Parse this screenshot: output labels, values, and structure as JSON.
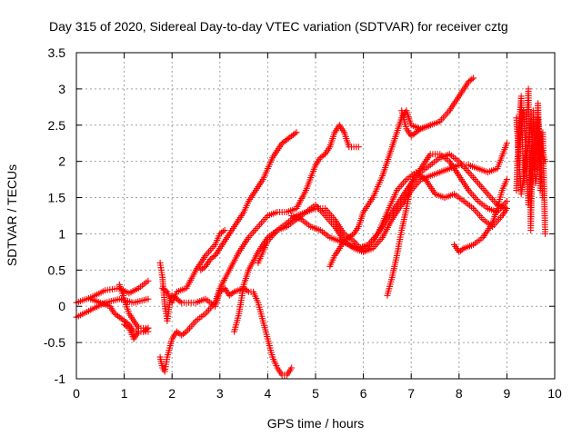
{
  "chart_data": {
    "type": "scatter",
    "title": "Day 315 of 2020, Sidereal Day-to-day VTEC variation (SDTVAR) for receiver cztg",
    "xlabel": "GPS time / hours",
    "ylabel": "SDTVAR / TECUs",
    "xlim": [
      0,
      10
    ],
    "ylim": [
      -1,
      3.5
    ],
    "xticks": [
      "0",
      "1",
      "2",
      "3",
      "4",
      "5",
      "6",
      "7",
      "8",
      "9",
      "10"
    ],
    "yticks": [
      "-1",
      "-0.5",
      "0",
      "0.5",
      "1",
      "1.5",
      "2",
      "2.5",
      "3",
      "3.5"
    ],
    "grid": true,
    "marker": "plus",
    "series_color": "#ff0000",
    "series": [
      {
        "x": [
          0.0,
          0.3,
          0.6,
          0.9,
          1.1,
          1.3,
          1.5
        ],
        "y": [
          0.05,
          0.12,
          0.22,
          0.25,
          0.18,
          0.25,
          0.35
        ]
      },
      {
        "x": [
          0.0,
          0.3,
          0.6,
          0.9,
          1.2,
          1.5
        ],
        "y": [
          -0.15,
          -0.05,
          0.05,
          0.1,
          0.05,
          0.1
        ]
      },
      {
        "x": [
          0.3,
          0.5,
          0.7,
          0.8,
          0.9,
          1.0,
          1.1,
          1.2,
          1.4,
          1.5
        ],
        "y": [
          0.1,
          0.05,
          0.0,
          -0.1,
          -0.15,
          -0.2,
          -0.25,
          -0.35,
          -0.35,
          -0.3
        ]
      },
      {
        "x": [
          1.0,
          1.1,
          1.2,
          1.3,
          1.5
        ],
        "y": [
          -0.25,
          -0.3,
          -0.45,
          -0.35,
          -0.35
        ]
      },
      {
        "x": [
          0.9,
          1.1,
          1.3,
          1.5
        ],
        "y": [
          0.3,
          -0.1,
          -0.3,
          -0.3
        ]
      },
      {
        "x": [
          1.75,
          1.8,
          1.85,
          1.9,
          1.95,
          2.0,
          2.1,
          2.2,
          2.3,
          2.5,
          2.7,
          2.9,
          3.0,
          3.1,
          3.2,
          3.3,
          3.5,
          3.6,
          3.7,
          3.8,
          3.9,
          4.0,
          4.1,
          4.2,
          4.3,
          4.4,
          4.5
        ],
        "y": [
          0.6,
          0.4,
          0.0,
          -0.2,
          0.05,
          0.15,
          0.1,
          0.05,
          0.05,
          0.05,
          0.1,
          0.0,
          0.2,
          0.25,
          0.15,
          0.2,
          0.25,
          0.2,
          0.2,
          0.05,
          -0.2,
          -0.45,
          -0.7,
          -0.85,
          -0.95,
          -0.95,
          -0.85
        ]
      },
      {
        "x": [
          1.75,
          1.8,
          1.85,
          1.9,
          2.0,
          2.1,
          2.2,
          2.3,
          2.5,
          2.7,
          2.9,
          3.0,
          3.2,
          3.4,
          3.6,
          3.8,
          4.0,
          4.2,
          4.4,
          4.6,
          4.8,
          5.0,
          5.1,
          5.2,
          5.3,
          5.4,
          5.5,
          5.6,
          5.7,
          5.8,
          5.9
        ],
        "y": [
          -0.7,
          -0.85,
          -0.9,
          -0.7,
          -0.45,
          -0.35,
          -0.4,
          -0.35,
          -0.2,
          -0.1,
          0.05,
          0.25,
          0.5,
          0.75,
          0.95,
          1.1,
          1.25,
          1.3,
          1.3,
          1.35,
          1.6,
          1.95,
          2.05,
          2.1,
          2.2,
          2.4,
          2.5,
          2.4,
          2.2,
          2.2,
          2.2
        ]
      },
      {
        "x": [
          1.8,
          1.9,
          2.0,
          2.1,
          2.3,
          2.5,
          2.7,
          2.9,
          3.0,
          3.1
        ],
        "y": [
          0.25,
          0.2,
          0.05,
          0.2,
          0.25,
          0.5,
          0.7,
          0.85,
          1.0,
          1.05
        ]
      },
      {
        "x": [
          2.6,
          2.7,
          2.8,
          2.9,
          3.0,
          3.1,
          3.2,
          3.3,
          3.4,
          3.5,
          3.6,
          3.7,
          3.8,
          3.9,
          4.0,
          4.1,
          4.2,
          4.3,
          4.4,
          4.5,
          4.6
        ],
        "y": [
          0.5,
          0.55,
          0.65,
          0.7,
          0.8,
          0.9,
          1.0,
          1.1,
          1.2,
          1.3,
          1.45,
          1.55,
          1.65,
          1.75,
          1.9,
          2.05,
          2.15,
          2.25,
          2.3,
          2.35,
          2.4
        ]
      },
      {
        "x": [
          3.3,
          3.4,
          3.5,
          3.6,
          3.8,
          4.0,
          4.2,
          4.4,
          4.6,
          4.8,
          5.0,
          5.2,
          5.4,
          5.6,
          5.8,
          6.0,
          6.2,
          6.4,
          6.6,
          6.8,
          7.0,
          7.2,
          7.4,
          7.6,
          7.8,
          8.0,
          8.2,
          8.4,
          8.6,
          8.8,
          9.0
        ],
        "y": [
          -0.35,
          -0.1,
          0.3,
          0.5,
          0.75,
          0.95,
          1.05,
          1.1,
          1.2,
          1.3,
          1.4,
          1.25,
          1.1,
          0.9,
          0.8,
          0.75,
          0.9,
          1.1,
          1.3,
          1.5,
          1.7,
          1.85,
          1.95,
          2.05,
          2.1,
          2.0,
          1.85,
          1.7,
          1.55,
          1.4,
          1.35
        ]
      },
      {
        "x": [
          3.8,
          4.0,
          4.2,
          4.4,
          4.6,
          4.8,
          5.0,
          5.2,
          5.4,
          5.6,
          5.8,
          6.0,
          6.2,
          6.4,
          6.6,
          6.8,
          7.0,
          7.2,
          7.4,
          7.6,
          7.8,
          8.0,
          8.2,
          8.4,
          8.6,
          8.8,
          9.0
        ],
        "y": [
          0.6,
          0.9,
          1.05,
          1.15,
          1.25,
          1.3,
          1.35,
          1.35,
          1.2,
          1.0,
          0.9,
          0.75,
          0.8,
          0.95,
          1.2,
          1.4,
          1.6,
          1.75,
          1.8,
          1.85,
          1.9,
          1.95,
          1.95,
          1.9,
          1.85,
          1.9,
          2.25
        ]
      },
      {
        "x": [
          4.5,
          4.7,
          4.9,
          5.1,
          5.3,
          5.5,
          5.7,
          5.9,
          6.1,
          6.3,
          6.5,
          6.7,
          6.9,
          7.1,
          7.3,
          7.5,
          7.7,
          7.9,
          8.1,
          8.3,
          8.5,
          8.7,
          8.9,
          9.0
        ],
        "y": [
          1.25,
          1.2,
          1.1,
          1.05,
          0.95,
          0.9,
          0.85,
          0.8,
          0.85,
          1.0,
          1.3,
          1.6,
          1.75,
          1.85,
          1.75,
          1.55,
          1.5,
          1.55,
          1.45,
          1.35,
          1.2,
          1.1,
          1.25,
          1.35
        ]
      },
      {
        "x": [
          5.3,
          5.4,
          5.5,
          5.6,
          5.7,
          5.8,
          5.9,
          6.0,
          6.1,
          6.2,
          6.3,
          6.4,
          6.5,
          6.6,
          6.7,
          6.8,
          6.9,
          7.0,
          7.2,
          7.4,
          7.6,
          7.8,
          8.0,
          8.2,
          8.3
        ],
        "y": [
          0.55,
          0.7,
          0.8,
          0.9,
          0.95,
          1.0,
          1.1,
          1.3,
          1.4,
          1.5,
          1.65,
          1.8,
          2.0,
          2.2,
          2.4,
          2.6,
          2.7,
          2.5,
          2.45,
          2.5,
          2.55,
          2.7,
          2.9,
          3.1,
          3.15
        ]
      },
      {
        "x": [
          6.5,
          6.6,
          6.7,
          6.8,
          6.9,
          7.0,
          7.2,
          7.4,
          7.6,
          7.8,
          8.0,
          8.2,
          8.4,
          8.6,
          8.8,
          9.0
        ],
        "y": [
          0.15,
          0.4,
          0.7,
          1.05,
          1.35,
          1.7,
          1.9,
          2.1,
          2.1,
          2.0,
          1.8,
          1.6,
          1.45,
          1.35,
          1.3,
          1.45
        ]
      },
      {
        "x": [
          6.8,
          6.9,
          7.0,
          7.1,
          7.2,
          7.4
        ],
        "y": [
          2.7,
          2.45,
          2.35,
          2.4,
          2.45,
          2.5
        ]
      },
      {
        "x": [
          7.9,
          8.0,
          8.1,
          8.3,
          8.5,
          8.7,
          8.8,
          8.9,
          9.0
        ],
        "y": [
          0.85,
          0.75,
          0.8,
          0.85,
          0.95,
          1.15,
          1.35,
          1.6,
          1.75
        ]
      },
      {
        "x": [
          9.2,
          9.25,
          9.3,
          9.35,
          9.4,
          9.45,
          9.5,
          9.55,
          9.6,
          9.65,
          9.7,
          9.75,
          9.8
        ],
        "y": [
          1.6,
          2.5,
          2.9,
          1.7,
          2.3,
          3.0,
          1.05,
          2.7,
          1.9,
          2.8,
          1.6,
          2.4,
          1.0
        ]
      },
      {
        "x": [
          9.2,
          9.3,
          9.4,
          9.5,
          9.6,
          9.7,
          9.8
        ],
        "y": [
          2.6,
          1.55,
          2.0,
          2.55,
          1.7,
          2.2,
          2.0
        ]
      },
      {
        "x": [
          9.25,
          9.35,
          9.45,
          9.55,
          9.65,
          9.75
        ],
        "y": [
          2.2,
          2.7,
          1.4,
          2.1,
          2.6,
          1.5
        ]
      }
    ]
  }
}
